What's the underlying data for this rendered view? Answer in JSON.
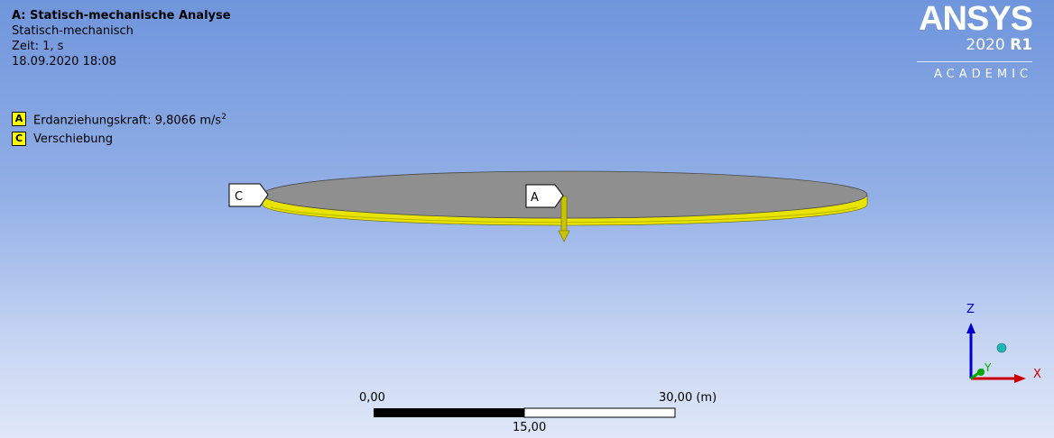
{
  "analysis": {
    "title": "A: Statisch-mechanische Analyse",
    "type": "Statisch-mechanisch",
    "time": "Zeit: 1, s",
    "date": "18.09.2020 18:08"
  },
  "legend": [
    {
      "badge": "A",
      "label": "Erdanziehungskraft: 9,8066 m/s",
      "sup": "2"
    },
    {
      "badge": "C",
      "label": "Verschiebung"
    }
  ],
  "logo": {
    "brand": "ANSYS",
    "version_year": "2020",
    "version_release": "R1",
    "edition": "ACADEMIC"
  },
  "callouts": {
    "c": "C",
    "a": "A"
  },
  "scale_bar": {
    "left": "0,00",
    "right": "30,00 (m)",
    "mid": "15,00"
  },
  "triad": {
    "z": "Z",
    "y": "Y",
    "x": "X"
  },
  "colors": {
    "background_top": "#6f95dc",
    "plate_top": "#8f8f8f",
    "plate_edge": "#e6e600",
    "triad_blue": "#0000cc",
    "triad_red": "#cc0000",
    "triad_green": "#00aa00"
  }
}
